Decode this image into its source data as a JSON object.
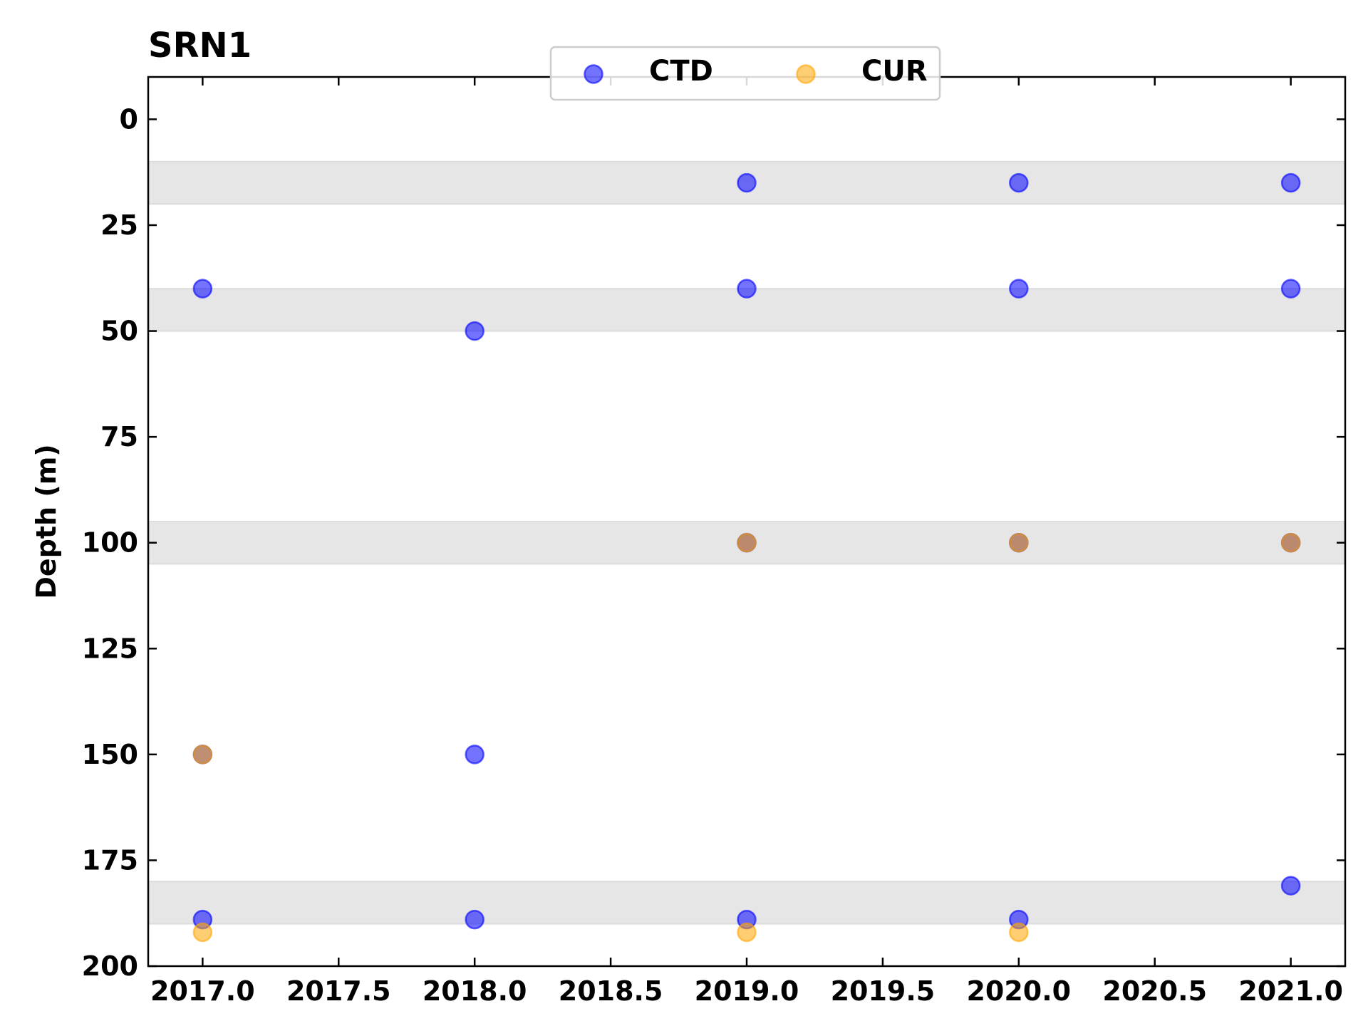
{
  "chart_data": {
    "type": "scatter",
    "title": "SRN1",
    "xlabel": "",
    "ylabel": "Depth (m)",
    "xlim": [
      2016.8,
      2021.2
    ],
    "ylim": [
      200,
      -10
    ],
    "y_inverted": true,
    "x_ticks": [
      "2017.0",
      "2017.5",
      "2018.0",
      "2018.5",
      "2019.0",
      "2019.5",
      "2020.0",
      "2020.5",
      "2021.0"
    ],
    "y_ticks": [
      "0",
      "25",
      "50",
      "75",
      "100",
      "125",
      "150",
      "175",
      "200"
    ],
    "grid": false,
    "legend_position": "top-center",
    "shaded_bands": [
      [
        10,
        20
      ],
      [
        40,
        50
      ],
      [
        95,
        105
      ],
      [
        180,
        190
      ]
    ],
    "band_color": "#e6e6e6",
    "series": [
      {
        "name": "CTD",
        "color": "#0000ff",
        "points": [
          {
            "x": 2017.0,
            "y": 40
          },
          {
            "x": 2017.0,
            "y": 150
          },
          {
            "x": 2017.0,
            "y": 189
          },
          {
            "x": 2018.0,
            "y": 50
          },
          {
            "x": 2018.0,
            "y": 150
          },
          {
            "x": 2018.0,
            "y": 189
          },
          {
            "x": 2019.0,
            "y": 15
          },
          {
            "x": 2019.0,
            "y": 40
          },
          {
            "x": 2019.0,
            "y": 100
          },
          {
            "x": 2019.0,
            "y": 189
          },
          {
            "x": 2020.0,
            "y": 15
          },
          {
            "x": 2020.0,
            "y": 40
          },
          {
            "x": 2020.0,
            "y": 100
          },
          {
            "x": 2020.0,
            "y": 189
          },
          {
            "x": 2021.0,
            "y": 15
          },
          {
            "x": 2021.0,
            "y": 40
          },
          {
            "x": 2021.0,
            "y": 100
          },
          {
            "x": 2021.0,
            "y": 181
          }
        ]
      },
      {
        "name": "CUR",
        "color": "#ffa500",
        "points": [
          {
            "x": 2017.0,
            "y": 150
          },
          {
            "x": 2017.0,
            "y": 192
          },
          {
            "x": 2019.0,
            "y": 100
          },
          {
            "x": 2019.0,
            "y": 192
          },
          {
            "x": 2020.0,
            "y": 100
          },
          {
            "x": 2020.0,
            "y": 192
          },
          {
            "x": 2021.0,
            "y": 100
          }
        ]
      }
    ]
  }
}
